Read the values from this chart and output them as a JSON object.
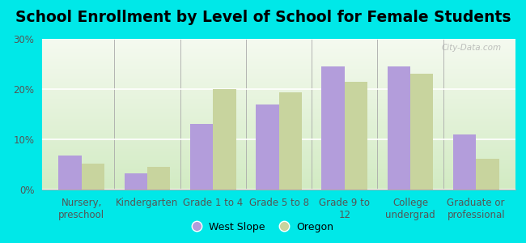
{
  "title": "School Enrollment by Level of School for Female Students",
  "categories": [
    "Nursery,\npreschool",
    "Kindergarten",
    "Grade 1 to 4",
    "Grade 5 to 8",
    "Grade 9 to\n12",
    "College\nundergrad",
    "Graduate or\nprofessional"
  ],
  "west_slope": [
    6.8,
    3.2,
    13.0,
    17.0,
    24.5,
    24.5,
    11.0
  ],
  "oregon": [
    5.2,
    4.5,
    20.0,
    19.3,
    21.5,
    23.0,
    6.2
  ],
  "west_slope_color": "#b39ddb",
  "oregon_color": "#c8d49e",
  "background_color": "#00e8e8",
  "plot_bg_top": "#f5faf0",
  "plot_bg_bottom": "#d8eec8",
  "ylim": [
    0,
    30
  ],
  "yticks": [
    0,
    10,
    20,
    30
  ],
  "ytick_labels": [
    "0%",
    "10%",
    "20%",
    "30%"
  ],
  "title_fontsize": 13.5,
  "tick_fontsize": 8.5,
  "legend_fontsize": 9,
  "bar_width": 0.35,
  "watermark": "City-Data.com"
}
